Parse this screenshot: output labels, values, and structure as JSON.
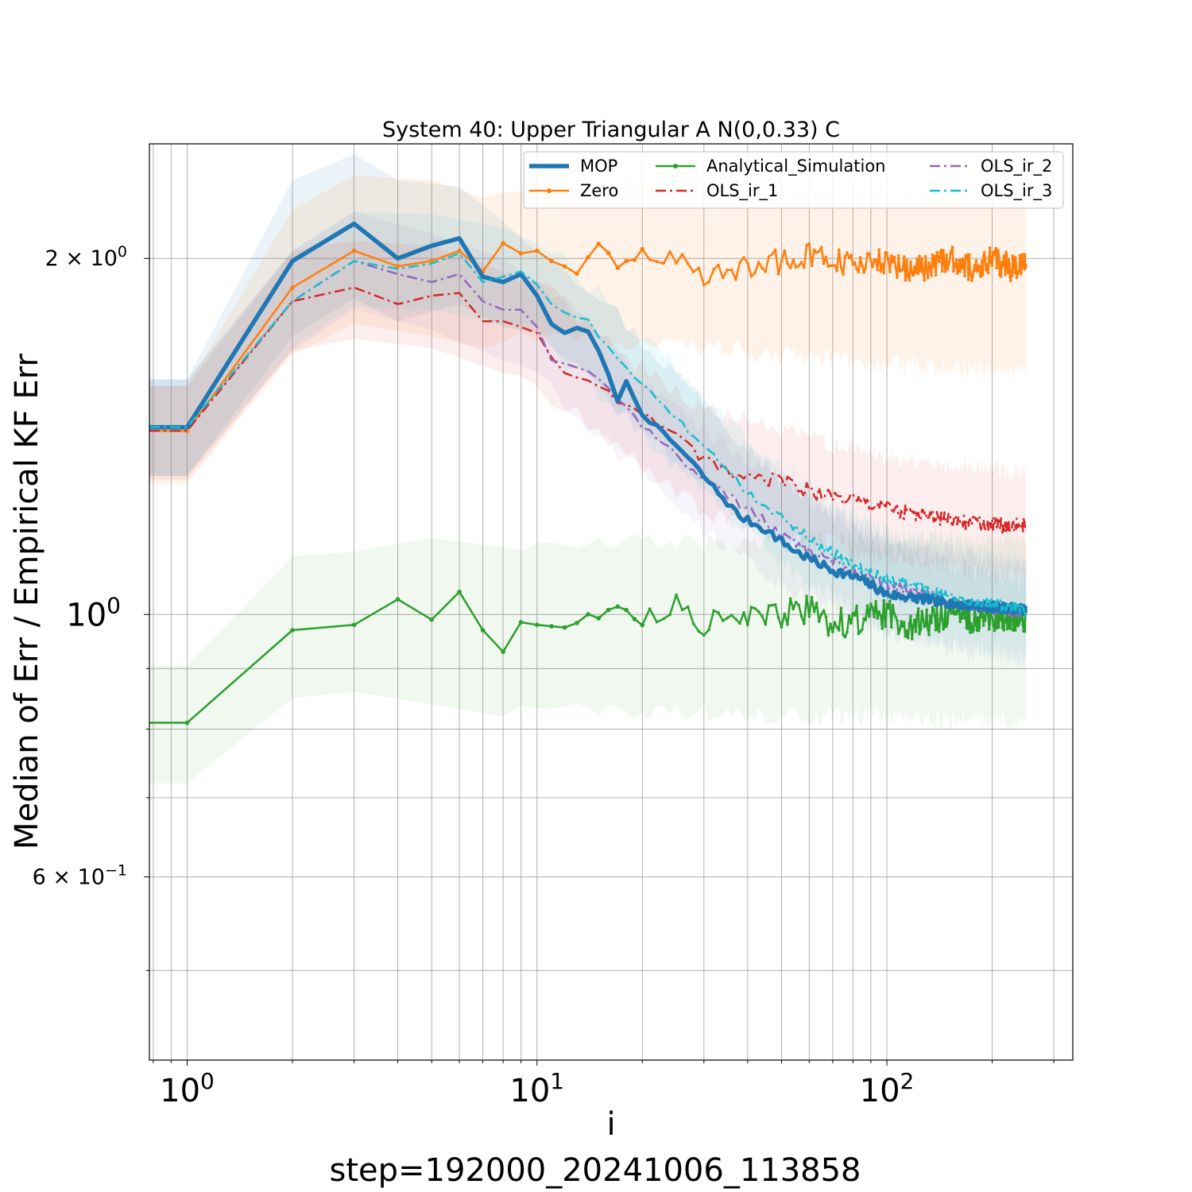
{
  "chart_data": {
    "type": "line",
    "title": "System 40: Upper Triangular A N(0,0.33) C",
    "xlabel": "i",
    "ylabel": "Median of Err / Empirical KF Err",
    "footer": "step=192000_20241006_113858",
    "x_scale": "log",
    "y_scale": "log",
    "xlim": [
      0.78,
      340
    ],
    "ylim": [
      0.42,
      2.5
    ],
    "grid": true,
    "legend_position": "top-right",
    "legend_columns": 3,
    "x_ticks": [
      {
        "value": 1,
        "base": "10",
        "exp": "0"
      },
      {
        "value": 10,
        "base": "10",
        "exp": "1"
      },
      {
        "value": 100,
        "base": "10",
        "exp": "2"
      }
    ],
    "y_ticks": [
      {
        "value": 2,
        "prefix": "2 × 10",
        "exp": "0"
      },
      {
        "value": 1,
        "prefix": "10",
        "exp": "0"
      },
      {
        "value": 0.6,
        "prefix": "6 × 10",
        "exp": "−1"
      }
    ],
    "series": [
      {
        "name": "MOP",
        "color": "#1f77b4",
        "style": "solid",
        "width": 5.5,
        "marker": false,
        "points": [
          [
            1,
            1.44
          ],
          [
            2,
            1.99
          ],
          [
            3,
            2.14
          ],
          [
            4,
            2.0
          ],
          [
            5,
            2.05
          ],
          [
            6,
            2.08
          ],
          [
            7,
            1.93
          ],
          [
            8,
            1.91
          ],
          [
            9,
            1.94
          ],
          [
            10,
            1.86
          ],
          [
            11,
            1.76
          ],
          [
            12,
            1.73
          ],
          [
            13,
            1.75
          ],
          [
            14,
            1.73
          ],
          [
            15,
            1.67
          ],
          [
            17,
            1.52
          ],
          [
            18,
            1.57
          ],
          [
            20,
            1.48
          ],
          [
            23,
            1.42
          ],
          [
            25,
            1.39
          ],
          [
            28,
            1.34
          ],
          [
            32,
            1.28
          ],
          [
            38,
            1.21
          ],
          [
            45,
            1.18
          ],
          [
            55,
            1.13
          ],
          [
            70,
            1.09
          ],
          [
            85,
            1.07
          ],
          [
            100,
            1.04
          ],
          [
            130,
            1.03
          ],
          [
            160,
            1.02
          ],
          [
            200,
            1.015
          ],
          [
            250,
            1.01
          ]
        ],
        "band": [
          [
            1,
            1.31,
            1.58
          ],
          [
            2,
            1.72,
            2.33
          ],
          [
            3,
            1.85,
            2.45
          ],
          [
            4,
            1.77,
            2.33
          ],
          [
            6,
            1.83,
            2.3
          ],
          [
            8,
            1.75,
            2.15
          ],
          [
            10,
            1.7,
            2.06
          ],
          [
            15,
            1.55,
            1.87
          ],
          [
            20,
            1.42,
            1.7
          ],
          [
            30,
            1.29,
            1.52
          ],
          [
            50,
            1.15,
            1.3
          ],
          [
            100,
            1.04,
            1.14
          ],
          [
            250,
            0.98,
            1.06
          ]
        ]
      },
      {
        "name": "Zero",
        "color": "#ff7f0e",
        "style": "solid",
        "width": 2.5,
        "marker": true,
        "points": [
          [
            1,
            1.43
          ],
          [
            2,
            1.89
          ],
          [
            3,
            2.03
          ],
          [
            4,
            1.97
          ],
          [
            5,
            1.99
          ],
          [
            6,
            2.03
          ],
          [
            7,
            1.95
          ],
          [
            8,
            2.06
          ],
          [
            9,
            2.02
          ],
          [
            10,
            2.03
          ],
          [
            11,
            1.99
          ],
          [
            13,
            1.95
          ],
          [
            15,
            2.04
          ],
          [
            17,
            1.97
          ],
          [
            20,
            2.03
          ],
          [
            25,
            2.0
          ],
          [
            30,
            1.92
          ],
          [
            40,
            1.97
          ],
          [
            50,
            1.99
          ],
          [
            60,
            2.01
          ],
          [
            80,
            1.97
          ],
          [
            100,
            1.99
          ],
          [
            120,
            1.95
          ],
          [
            150,
            2.0
          ],
          [
            180,
            1.96
          ],
          [
            200,
            2.0
          ],
          [
            230,
            1.96
          ],
          [
            250,
            1.99
          ]
        ],
        "band": [
          [
            1,
            1.29,
            1.56
          ],
          [
            2,
            1.66,
            2.2
          ],
          [
            3,
            1.76,
            2.35
          ],
          [
            5,
            1.72,
            2.33
          ],
          [
            7,
            1.68,
            2.25
          ],
          [
            10,
            1.73,
            2.32
          ],
          [
            20,
            1.7,
            2.3
          ],
          [
            50,
            1.66,
            2.28
          ],
          [
            100,
            1.63,
            2.28
          ],
          [
            250,
            1.6,
            2.26
          ]
        ]
      },
      {
        "name": "Analytical_Simulation",
        "color": "#2ca02c",
        "style": "solid",
        "width": 2.5,
        "marker": true,
        "points": [
          [
            1,
            0.81
          ],
          [
            2,
            0.97
          ],
          [
            3,
            0.98
          ],
          [
            4,
            1.03
          ],
          [
            5,
            0.99
          ],
          [
            6,
            1.045
          ],
          [
            7,
            0.97
          ],
          [
            8,
            0.93
          ],
          [
            9,
            0.985
          ],
          [
            10,
            0.98
          ],
          [
            12,
            0.975
          ],
          [
            14,
            1.0
          ],
          [
            16,
            1.0
          ],
          [
            18,
            1.02
          ],
          [
            20,
            0.99
          ],
          [
            22,
            1.0
          ],
          [
            25,
            1.02
          ],
          [
            30,
            0.98
          ],
          [
            35,
            1.01
          ],
          [
            40,
            0.99
          ],
          [
            50,
            1.0
          ],
          [
            60,
            1.01
          ],
          [
            70,
            0.98
          ],
          [
            80,
            0.99
          ],
          [
            100,
            1.0
          ],
          [
            120,
            0.98
          ],
          [
            150,
            1.0
          ],
          [
            200,
            0.99
          ],
          [
            250,
            0.99
          ]
        ],
        "band": [
          [
            1,
            0.72,
            0.905
          ],
          [
            2,
            0.85,
            1.12
          ],
          [
            3,
            0.86,
            1.13
          ],
          [
            5,
            0.84,
            1.16
          ],
          [
            8,
            0.82,
            1.14
          ],
          [
            10,
            0.84,
            1.14
          ],
          [
            20,
            0.83,
            1.15
          ],
          [
            50,
            0.82,
            1.15
          ],
          [
            100,
            0.82,
            1.16
          ],
          [
            250,
            0.81,
            1.16
          ]
        ]
      },
      {
        "name": "OLS_ir_1",
        "color": "#d62728",
        "style": "dashdot",
        "width": 2.5,
        "marker": false,
        "points": [
          [
            1,
            1.43
          ],
          [
            2,
            1.84
          ],
          [
            3,
            1.89
          ],
          [
            4,
            1.83
          ],
          [
            5,
            1.86
          ],
          [
            6,
            1.87
          ],
          [
            7,
            1.77
          ],
          [
            8,
            1.77
          ],
          [
            9,
            1.75
          ],
          [
            10,
            1.73
          ],
          [
            11,
            1.65
          ],
          [
            12,
            1.6
          ],
          [
            14,
            1.58
          ],
          [
            16,
            1.54
          ],
          [
            18,
            1.5
          ],
          [
            20,
            1.47
          ],
          [
            23,
            1.45
          ],
          [
            26,
            1.4
          ],
          [
            30,
            1.35
          ],
          [
            35,
            1.32
          ],
          [
            40,
            1.3
          ],
          [
            50,
            1.3
          ],
          [
            60,
            1.27
          ],
          [
            80,
            1.25
          ],
          [
            100,
            1.23
          ],
          [
            130,
            1.21
          ],
          [
            160,
            1.2
          ],
          [
            200,
            1.19
          ],
          [
            250,
            1.19
          ]
        ],
        "band": [
          [
            1,
            1.3,
            1.56
          ],
          [
            2,
            1.67,
            2.03
          ],
          [
            3,
            1.71,
            2.07
          ],
          [
            5,
            1.68,
            2.05
          ],
          [
            8,
            1.6,
            1.95
          ],
          [
            10,
            1.56,
            1.91
          ],
          [
            20,
            1.33,
            1.62
          ],
          [
            30,
            1.22,
            1.49
          ],
          [
            50,
            1.18,
            1.43
          ],
          [
            100,
            1.11,
            1.36
          ],
          [
            250,
            1.07,
            1.32
          ]
        ]
      },
      {
        "name": "OLS_ir_2",
        "color": "#9467bd",
        "style": "dashdot",
        "width": 2.5,
        "marker": false,
        "points": [
          [
            1,
            1.44
          ],
          [
            2,
            1.84
          ],
          [
            3,
            1.99
          ],
          [
            4,
            1.94
          ],
          [
            5,
            1.91
          ],
          [
            6,
            1.94
          ],
          [
            7,
            1.84
          ],
          [
            8,
            1.81
          ],
          [
            9,
            1.81
          ],
          [
            10,
            1.75
          ],
          [
            11,
            1.64
          ],
          [
            12,
            1.63
          ],
          [
            14,
            1.61
          ],
          [
            16,
            1.55
          ],
          [
            18,
            1.5
          ],
          [
            20,
            1.44
          ],
          [
            23,
            1.4
          ],
          [
            26,
            1.35
          ],
          [
            30,
            1.3
          ],
          [
            35,
            1.26
          ],
          [
            40,
            1.23
          ],
          [
            50,
            1.17
          ],
          [
            60,
            1.13
          ],
          [
            80,
            1.09
          ],
          [
            100,
            1.06
          ],
          [
            130,
            1.04
          ],
          [
            160,
            1.02
          ],
          [
            200,
            1.01
          ],
          [
            250,
            1.0
          ]
        ],
        "band": [
          [
            1,
            1.31,
            1.58
          ],
          [
            2,
            1.67,
            2.03
          ],
          [
            3,
            1.81,
            2.19
          ],
          [
            5,
            1.74,
            2.1
          ],
          [
            8,
            1.64,
            2.0
          ],
          [
            10,
            1.59,
            1.93
          ],
          [
            20,
            1.31,
            1.59
          ],
          [
            30,
            1.18,
            1.43
          ],
          [
            50,
            1.06,
            1.29
          ],
          [
            100,
            0.96,
            1.16
          ],
          [
            250,
            0.91,
            1.1
          ]
        ]
      },
      {
        "name": "OLS_ir_3",
        "color": "#17becf",
        "style": "dashdot",
        "width": 2.5,
        "marker": false,
        "points": [
          [
            1,
            1.44
          ],
          [
            2,
            1.84
          ],
          [
            3,
            1.99
          ],
          [
            4,
            1.96
          ],
          [
            5,
            1.98
          ],
          [
            6,
            2.02
          ],
          [
            7,
            1.91
          ],
          [
            8,
            1.93
          ],
          [
            9,
            1.95
          ],
          [
            10,
            1.9
          ],
          [
            11,
            1.83
          ],
          [
            12,
            1.8
          ],
          [
            14,
            1.77
          ],
          [
            16,
            1.68
          ],
          [
            18,
            1.61
          ],
          [
            20,
            1.56
          ],
          [
            23,
            1.51
          ],
          [
            26,
            1.45
          ],
          [
            30,
            1.39
          ],
          [
            35,
            1.32
          ],
          [
            40,
            1.27
          ],
          [
            50,
            1.21
          ],
          [
            60,
            1.16
          ],
          [
            80,
            1.1
          ],
          [
            100,
            1.07
          ],
          [
            130,
            1.05
          ],
          [
            160,
            1.03
          ],
          [
            200,
            1.02
          ],
          [
            250,
            1.01
          ]
        ],
        "band": [
          [
            1,
            1.31,
            1.58
          ],
          [
            2,
            1.68,
            2.03
          ],
          [
            3,
            1.82,
            2.19
          ],
          [
            5,
            1.81,
            2.18
          ],
          [
            8,
            1.76,
            2.12
          ],
          [
            10,
            1.73,
            2.09
          ],
          [
            20,
            1.42,
            1.72
          ],
          [
            30,
            1.27,
            1.53
          ],
          [
            50,
            1.1,
            1.33
          ],
          [
            100,
            0.97,
            1.17
          ],
          [
            250,
            0.92,
            1.11
          ]
        ]
      }
    ]
  }
}
